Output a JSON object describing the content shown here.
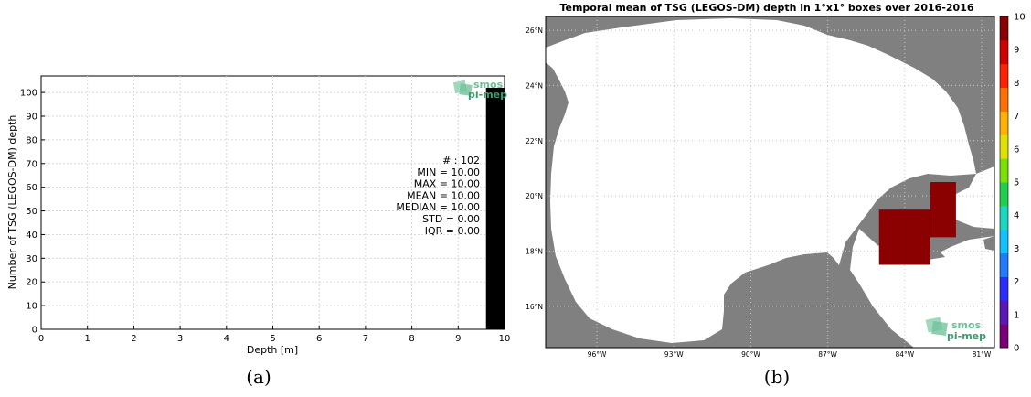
{
  "captions": {
    "a": "(a)",
    "b": "(b)"
  },
  "logo": {
    "line1": "smos",
    "line2": "pi-mep"
  },
  "chart_data": [
    {
      "type": "bar",
      "xlabel": "Depth [m]",
      "ylabel": "Number of TSG (LEGOS-DM) depth",
      "xlim": [
        0,
        10
      ],
      "ylim": [
        0,
        107
      ],
      "xticks": [
        0,
        1,
        2,
        3,
        4,
        5,
        6,
        7,
        8,
        9,
        10
      ],
      "yticks": [
        0,
        10,
        20,
        30,
        40,
        50,
        60,
        70,
        80,
        90,
        100
      ],
      "grid": true,
      "bars": [
        {
          "x0": 9.6,
          "x1": 10.0,
          "value": 102,
          "color": "#000000"
        }
      ],
      "stats": [
        "# : 102",
        "MIN = 10.00",
        "MAX =  10.00",
        "MEAN = 10.00",
        "MEDIAN = 10.00",
        "STD = 0.00",
        "IQR = 0.00"
      ]
    },
    {
      "type": "heatmap",
      "title": "Temporal mean of TSG (LEGOS-DM) depth in 1°x1° boxes over 2016-2016",
      "lon_range": [
        -98,
        -80.5
      ],
      "lat_range": [
        14.5,
        26.5
      ],
      "lon_ticks": [
        "96°W",
        "93°W",
        "90°W",
        "87°W",
        "84°W",
        "81°W"
      ],
      "lat_ticks": [
        "16°N",
        "18°N",
        "20°N",
        "22°N",
        "24°N",
        "26°N"
      ],
      "grid": true,
      "colorbar": {
        "min": 0,
        "max": 10,
        "ticks": [
          "0",
          "1",
          "2",
          "3",
          "4",
          "5",
          "6",
          "7",
          "8",
          "9",
          "10"
        ],
        "colors": [
          "#7a007a",
          "#5a18b8",
          "#2b2cff",
          "#1f7cff",
          "#10c0ff",
          "#1ad6c0",
          "#1fcf4e",
          "#79e000",
          "#e0e000",
          "#ffb000",
          "#ff7000",
          "#ff2200",
          "#d00000",
          "#8b0000"
        ]
      },
      "cells": [
        {
          "lon0": -85.0,
          "lon1": -83.0,
          "lat0": 17.5,
          "lat1": 19.5,
          "value": 10
        },
        {
          "lon0": -83.0,
          "lon1": -82.0,
          "lat0": 18.5,
          "lat1": 20.5,
          "value": 10
        }
      ]
    }
  ]
}
